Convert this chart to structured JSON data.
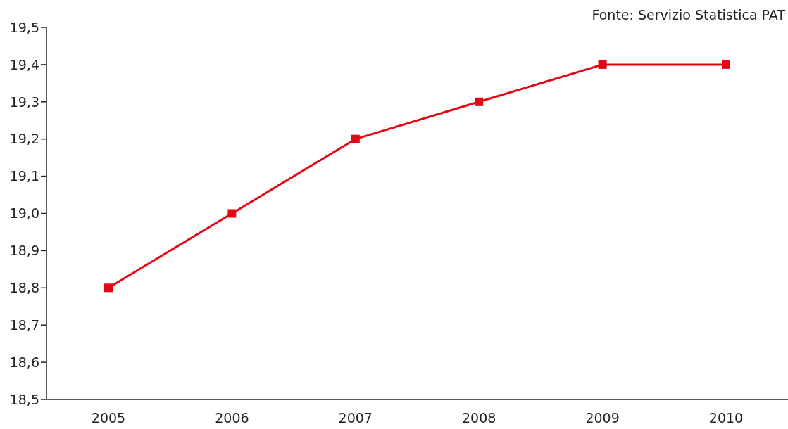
{
  "chart_data": {
    "type": "line",
    "annotations": [
      "Fonte: Servizio Statistica PAT"
    ],
    "categories": [
      "2005",
      "2006",
      "2007",
      "2008",
      "2009",
      "2010"
    ],
    "series": [
      {
        "color": "#e30613",
        "values": [
          18.8,
          19.0,
          19.2,
          19.3,
          19.4,
          19.4
        ]
      }
    ],
    "ylim": [
      18.5,
      19.5
    ],
    "yticks": [
      {
        "value": 18.5,
        "label": "18,5"
      },
      {
        "value": 18.6,
        "label": "18,6"
      },
      {
        "value": 18.7,
        "label": "18,7"
      },
      {
        "value": 18.8,
        "label": "18,8"
      },
      {
        "value": 18.9,
        "label": "18,9"
      },
      {
        "value": 19.0,
        "label": "19,0"
      },
      {
        "value": 19.1,
        "label": "19,1"
      },
      {
        "value": 19.2,
        "label": "19,2"
      },
      {
        "value": 19.3,
        "label": "19,3"
      },
      {
        "value": 19.4,
        "label": "19,4"
      },
      {
        "value": 19.5,
        "label": "19,5"
      }
    ],
    "grid": false,
    "legend": false,
    "marker": "square",
    "line_style": "solid"
  }
}
